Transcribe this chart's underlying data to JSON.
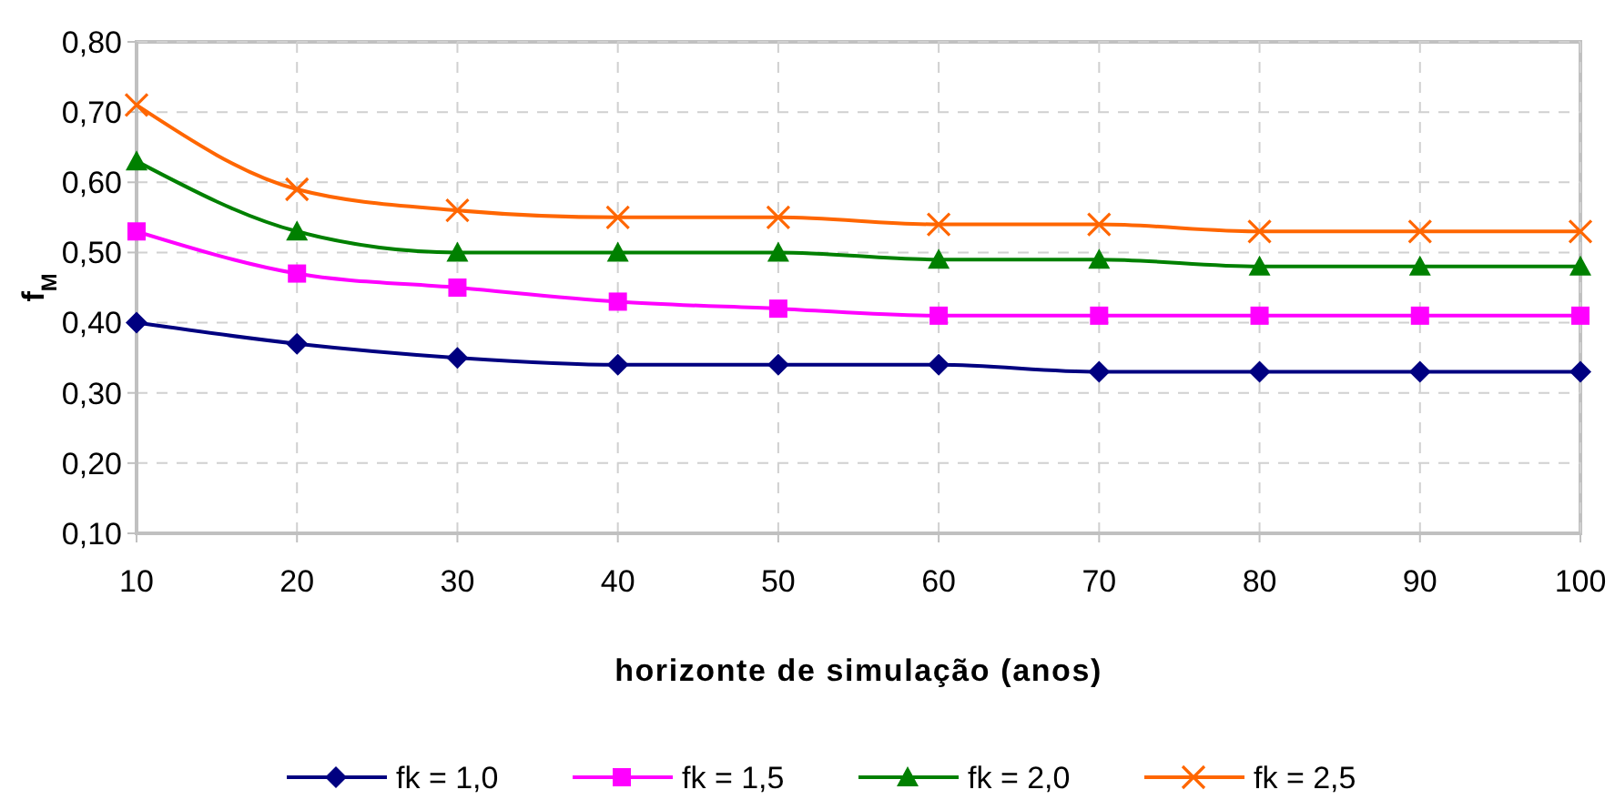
{
  "chart_data": {
    "type": "line",
    "xlabel": "horizonte de simulação (anos)",
    "ylabel": "f$_{M}$",
    "x": [
      10,
      20,
      30,
      40,
      50,
      60,
      70,
      80,
      90,
      100
    ],
    "xlim": [
      10,
      100
    ],
    "xticks": [
      10,
      20,
      30,
      40,
      50,
      60,
      70,
      80,
      90,
      100
    ],
    "ylim": [
      0.1,
      0.8
    ],
    "yticks": [
      {
        "value": 0.1,
        "label": "0,10"
      },
      {
        "value": 0.2,
        "label": "0,20"
      },
      {
        "value": 0.3,
        "label": "0,30"
      },
      {
        "value": 0.4,
        "label": "0,40"
      },
      {
        "value": 0.5,
        "label": "0,50"
      },
      {
        "value": 0.6,
        "label": "0,60"
      },
      {
        "value": 0.7,
        "label": "0,70"
      },
      {
        "value": 0.8,
        "label": "0,80"
      }
    ],
    "grid": true,
    "legend": "bottom",
    "line_style": "solid",
    "series": [
      {
        "name": "fk = 1,0",
        "color": "#000080",
        "marker": "diamond",
        "values": [
          0.4,
          0.37,
          0.35,
          0.34,
          0.34,
          0.34,
          0.33,
          0.33,
          0.33,
          0.33
        ]
      },
      {
        "name": "fk = 1,5",
        "color": "#ff00ff",
        "marker": "square",
        "values": [
          0.53,
          0.47,
          0.45,
          0.43,
          0.42,
          0.41,
          0.41,
          0.41,
          0.41,
          0.41
        ]
      },
      {
        "name": "fk = 2,0",
        "color": "#008000",
        "marker": "triangle",
        "values": [
          0.63,
          0.53,
          0.5,
          0.5,
          0.5,
          0.49,
          0.49,
          0.48,
          0.48,
          0.48
        ]
      },
      {
        "name": "fk = 2,5",
        "color": "#ff6600",
        "marker": "cross",
        "values": [
          0.71,
          0.59,
          0.56,
          0.55,
          0.55,
          0.54,
          0.54,
          0.53,
          0.53,
          0.53
        ]
      }
    ]
  }
}
